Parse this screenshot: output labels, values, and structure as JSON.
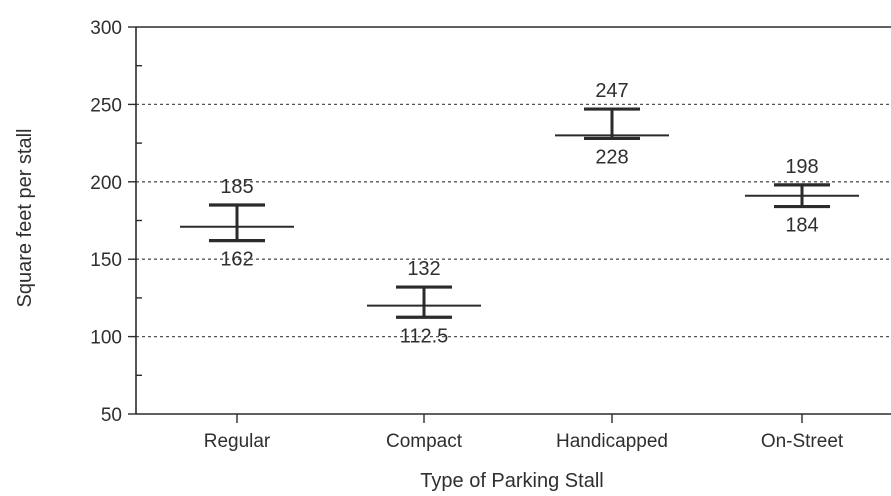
{
  "chart_data": {
    "type": "errorbar",
    "title": "",
    "xlabel": "Type of Parking Stall",
    "ylabel": "Square feet per stall",
    "ylim": [
      50,
      300
    ],
    "yticks": [
      50,
      100,
      150,
      200,
      250,
      300
    ],
    "ytick_labels": [
      "50",
      "100",
      "150",
      "200",
      "250",
      "300"
    ],
    "grid": "dotted horizontal at 100, 150, 200, 250",
    "categories": [
      "Regular",
      "Compact",
      "Handicapped",
      "On-Street"
    ],
    "ranges": [
      {
        "category": "Regular",
        "low": 162,
        "high": 185,
        "mid": 171,
        "low_label": "162",
        "high_label": "185"
      },
      {
        "category": "Compact",
        "low": 112.5,
        "high": 132,
        "mid": 120,
        "low_label": "112.5",
        "high_label": "132"
      },
      {
        "category": "Handicapped",
        "low": 228,
        "high": 247,
        "mid": 230,
        "low_label": "228",
        "high_label": "247"
      },
      {
        "category": "On-Street",
        "low": 184,
        "high": 198,
        "mid": 191,
        "low_label": "184",
        "high_label": "198"
      }
    ]
  },
  "colors": {
    "ink": "#2b2b2b",
    "grid": "#555555",
    "background": "#ffffff"
  }
}
